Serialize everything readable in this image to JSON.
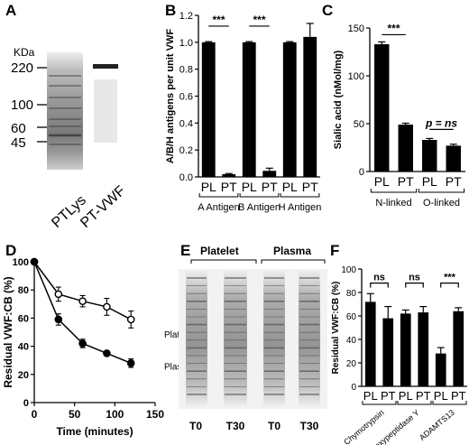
{
  "panel_letters": {
    "a": "A",
    "b": "B",
    "c": "C",
    "d": "D",
    "e": "E",
    "f": "F"
  },
  "gel_a": {
    "unit_label": "KDa",
    "markers": [
      "220",
      "100",
      "60",
      "45"
    ],
    "lane_labels": [
      "PTLys",
      "PT-VWF"
    ]
  },
  "gel_e": {
    "group_labels": [
      "Platelet",
      "Plasma"
    ],
    "lane_labels": [
      "T0",
      "T30",
      "T0",
      "T30"
    ]
  },
  "chart_data": [
    {
      "panel": "B",
      "type": "bar",
      "ylabel": "A/B/H antigens per unit VWF",
      "ylim": [
        0,
        1.2
      ],
      "yticks": [
        "0.0",
        "0.2",
        "0.4",
        "0.6",
        "0.8",
        "1.0",
        "1.2"
      ],
      "categories": [
        "PL",
        "PT",
        "PL",
        "PT",
        "PL",
        "PT"
      ],
      "groups": [
        "A Antigen",
        "B Antigen",
        "H Antigen"
      ],
      "values": [
        1.0,
        0.02,
        1.0,
        0.045,
        1.0,
        1.04
      ],
      "errors": [
        0.005,
        0.005,
        0.005,
        0.02,
        0.005,
        0.1
      ],
      "significance": [
        "***",
        "***"
      ],
      "color": "#000000"
    },
    {
      "panel": "C",
      "type": "bar",
      "ylabel": "Sialic acid (nMol/mg)",
      "ylim": [
        0,
        150
      ],
      "yticks": [
        "0",
        "50",
        "100",
        "150"
      ],
      "categories": [
        "PL",
        "PT",
        "PL",
        "PT"
      ],
      "groups": [
        "N-linked",
        "O-linked"
      ],
      "values": [
        133,
        49,
        33,
        27
      ],
      "errors": [
        2.5,
        1.5,
        1.5,
        1.5
      ],
      "significance": [
        "***",
        "p = ns"
      ],
      "color": "#000000"
    },
    {
      "panel": "D",
      "type": "line",
      "xlabel": "Time (minutes)",
      "ylabel": "Residual VWF:CB (%)",
      "xlim": [
        0,
        150
      ],
      "ylim": [
        0,
        100
      ],
      "xticks": [
        "0",
        "50",
        "100",
        "150"
      ],
      "yticks": [
        "0",
        "20",
        "40",
        "60",
        "80",
        "100"
      ],
      "series": [
        {
          "name": "Platelet VWF",
          "x": [
            0,
            30,
            60,
            90,
            120
          ],
          "y": [
            100,
            77,
            72,
            68,
            59
          ],
          "err": [
            0,
            5,
            4,
            6,
            6
          ],
          "marker": "open"
        },
        {
          "name": "Plasma VWF",
          "x": [
            0,
            30,
            60,
            90,
            120
          ],
          "y": [
            100,
            59,
            42,
            35,
            28
          ],
          "err": [
            0,
            4,
            3,
            0,
            3
          ],
          "marker": "filled"
        }
      ]
    },
    {
      "panel": "F",
      "type": "bar",
      "ylabel": "Residual VWF:CB (%)",
      "ylim": [
        0,
        100
      ],
      "yticks": [
        "0",
        "20",
        "40",
        "60",
        "80",
        "100"
      ],
      "categories": [
        "PL",
        "PT",
        "PL",
        "PT",
        "PL",
        "PT"
      ],
      "groups": [
        "Chymotrypsin",
        "Carboxypeptidase Y",
        "ADAMTS13"
      ],
      "values": [
        72,
        58,
        62,
        63,
        28,
        64
      ],
      "errors": [
        7,
        10,
        3,
        5,
        5,
        3
      ],
      "significance": [
        "ns",
        "ns",
        "***"
      ],
      "color": "#000000"
    }
  ]
}
